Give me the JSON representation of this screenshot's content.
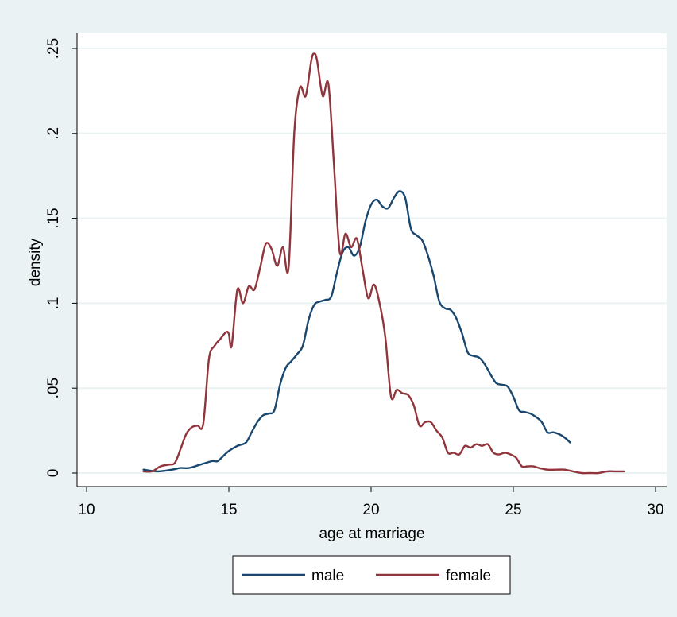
{
  "chart_data": {
    "type": "line",
    "title": "",
    "xlabel": "age at marriage",
    "ylabel": "density",
    "xlim": [
      10,
      30
    ],
    "ylim": [
      0,
      0.25
    ],
    "xticks": [
      10,
      15,
      20,
      25,
      30
    ],
    "xtick_labels": [
      "10",
      "15",
      "20",
      "25",
      "30"
    ],
    "yticks": [
      0,
      0.05,
      0.1,
      0.15,
      0.2,
      0.25
    ],
    "ytick_labels": [
      "0",
      ".05",
      ".1",
      ".15",
      ".2",
      ".25"
    ],
    "grid": true,
    "legend_position": "bottom",
    "series": [
      {
        "name": "male",
        "color": "#1a476f",
        "x": [
          12.0,
          12.5,
          13.0,
          13.3,
          13.6,
          14.0,
          14.4,
          14.6,
          14.8,
          15.0,
          15.3,
          15.6,
          15.8,
          16.0,
          16.2,
          16.4,
          16.6,
          16.8,
          17.0,
          17.2,
          17.4,
          17.6,
          17.8,
          18.0,
          18.2,
          18.4,
          18.6,
          18.8,
          19.0,
          19.2,
          19.4,
          19.6,
          19.8,
          20.0,
          20.2,
          20.4,
          20.6,
          20.8,
          21.0,
          21.2,
          21.4,
          21.6,
          21.8,
          22.0,
          22.2,
          22.4,
          22.6,
          22.8,
          23.0,
          23.2,
          23.4,
          23.6,
          23.8,
          24.0,
          24.2,
          24.4,
          24.6,
          24.8,
          25.0,
          25.2,
          25.4,
          25.6,
          25.8,
          26.0,
          26.2,
          26.4,
          26.6,
          26.8,
          27.0
        ],
        "y": [
          0.002,
          0.001,
          0.002,
          0.003,
          0.003,
          0.005,
          0.007,
          0.007,
          0.01,
          0.013,
          0.016,
          0.018,
          0.024,
          0.03,
          0.034,
          0.035,
          0.037,
          0.052,
          0.062,
          0.066,
          0.07,
          0.075,
          0.09,
          0.099,
          0.101,
          0.102,
          0.104,
          0.118,
          0.13,
          0.133,
          0.128,
          0.133,
          0.148,
          0.158,
          0.161,
          0.157,
          0.156,
          0.162,
          0.166,
          0.162,
          0.144,
          0.14,
          0.137,
          0.128,
          0.116,
          0.101,
          0.097,
          0.096,
          0.091,
          0.082,
          0.071,
          0.069,
          0.068,
          0.064,
          0.058,
          0.053,
          0.052,
          0.051,
          0.045,
          0.037,
          0.036,
          0.035,
          0.033,
          0.03,
          0.024,
          0.024,
          0.023,
          0.021,
          0.018
        ]
      },
      {
        "name": "female",
        "color": "#90353b",
        "x": [
          12.0,
          12.3,
          12.6,
          12.9,
          13.1,
          13.3,
          13.5,
          13.7,
          13.9,
          14.1,
          14.3,
          14.5,
          14.7,
          14.9,
          15.0,
          15.1,
          15.3,
          15.5,
          15.7,
          15.9,
          16.1,
          16.3,
          16.5,
          16.7,
          16.9,
          17.1,
          17.3,
          17.5,
          17.7,
          17.9,
          18.0,
          18.1,
          18.3,
          18.5,
          18.7,
          18.9,
          19.1,
          19.3,
          19.5,
          19.7,
          19.9,
          20.1,
          20.3,
          20.5,
          20.7,
          20.9,
          21.1,
          21.3,
          21.5,
          21.7,
          21.9,
          22.1,
          22.3,
          22.5,
          22.7,
          22.9,
          23.1,
          23.3,
          23.5,
          23.7,
          23.9,
          24.1,
          24.3,
          24.5,
          24.7,
          24.9,
          25.1,
          25.3,
          25.5,
          25.7,
          25.9,
          26.2,
          26.5,
          26.8,
          27.1,
          27.4,
          27.7,
          28.0,
          28.3,
          28.6,
          28.9
        ],
        "y": [
          0.001,
          0.001,
          0.004,
          0.005,
          0.006,
          0.014,
          0.023,
          0.027,
          0.028,
          0.029,
          0.067,
          0.075,
          0.079,
          0.083,
          0.082,
          0.075,
          0.108,
          0.1,
          0.11,
          0.108,
          0.121,
          0.135,
          0.132,
          0.122,
          0.133,
          0.121,
          0.2,
          0.227,
          0.222,
          0.243,
          0.247,
          0.243,
          0.222,
          0.229,
          0.18,
          0.13,
          0.141,
          0.133,
          0.138,
          0.12,
          0.103,
          0.111,
          0.1,
          0.08,
          0.045,
          0.049,
          0.047,
          0.046,
          0.04,
          0.028,
          0.03,
          0.03,
          0.025,
          0.021,
          0.012,
          0.012,
          0.011,
          0.016,
          0.015,
          0.017,
          0.016,
          0.017,
          0.012,
          0.011,
          0.012,
          0.011,
          0.009,
          0.004,
          0.004,
          0.004,
          0.003,
          0.002,
          0.002,
          0.002,
          0.001,
          0.0,
          0.0,
          0.0,
          0.001,
          0.001,
          0.001
        ]
      }
    ]
  }
}
